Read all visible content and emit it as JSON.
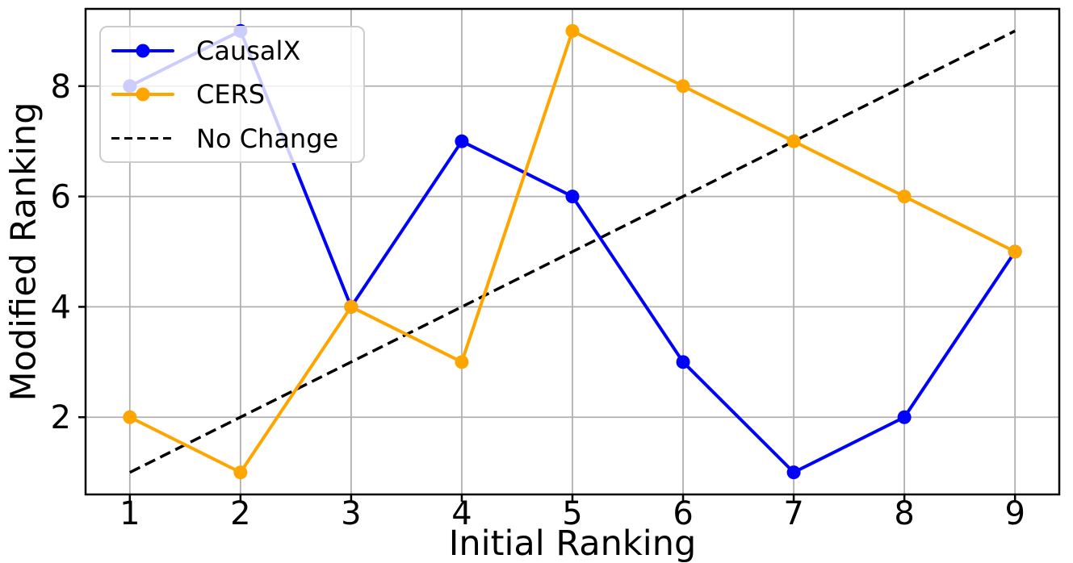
{
  "chart_data": {
    "type": "line",
    "title": "",
    "xlabel": "Initial Ranking",
    "ylabel": "Modified Ranking",
    "xlim": [
      0.6,
      9.4
    ],
    "ylim": [
      0.6,
      9.4
    ],
    "x_ticks": [
      1,
      2,
      3,
      4,
      5,
      6,
      7,
      8,
      9
    ],
    "y_ticks": [
      2,
      4,
      6,
      8
    ],
    "grid": true,
    "grid_color": "#b0b0b0",
    "spine_color": "#000000",
    "legend_position": "upper left",
    "series": [
      {
        "name": "CausalX",
        "color": "#0000ff",
        "line_style": "solid",
        "marker": "circle",
        "x": [
          1,
          2,
          3,
          4,
          5,
          6,
          7,
          8,
          9
        ],
        "y": [
          8,
          9,
          4,
          7,
          6,
          3,
          1,
          2,
          5
        ]
      },
      {
        "name": "CERS",
        "color": "#ffa500",
        "line_style": "solid",
        "marker": "circle",
        "x": [
          1,
          2,
          3,
          4,
          5,
          6,
          7,
          8,
          9
        ],
        "y": [
          2,
          1,
          4,
          3,
          9,
          8,
          7,
          6,
          5
        ]
      },
      {
        "name": "No Change",
        "color": "#000000",
        "line_style": "dashed",
        "marker": "none",
        "x": [
          1,
          9
        ],
        "y": [
          1,
          9
        ]
      }
    ],
    "draw_order": [
      2,
      0,
      1
    ]
  }
}
